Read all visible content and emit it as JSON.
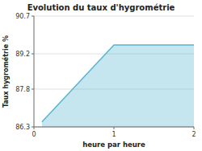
{
  "chart_data": {
    "type": "area",
    "title": "Evolution du taux d'hygrométrie",
    "x_label": "heure par heure",
    "y_label": "Taux hygrométrie %",
    "x": [
      0.1,
      1.0,
      2.0
    ],
    "values": [
      86.5,
      89.55,
      89.55
    ],
    "color": "#5ab5d0",
    "xlim": [
      0,
      2
    ],
    "ylim": [
      86.3,
      90.7
    ],
    "xticks": [
      0,
      1,
      2
    ],
    "yticks": [
      86.3,
      87.8,
      89.2,
      90.7
    ],
    "grid": true
  }
}
